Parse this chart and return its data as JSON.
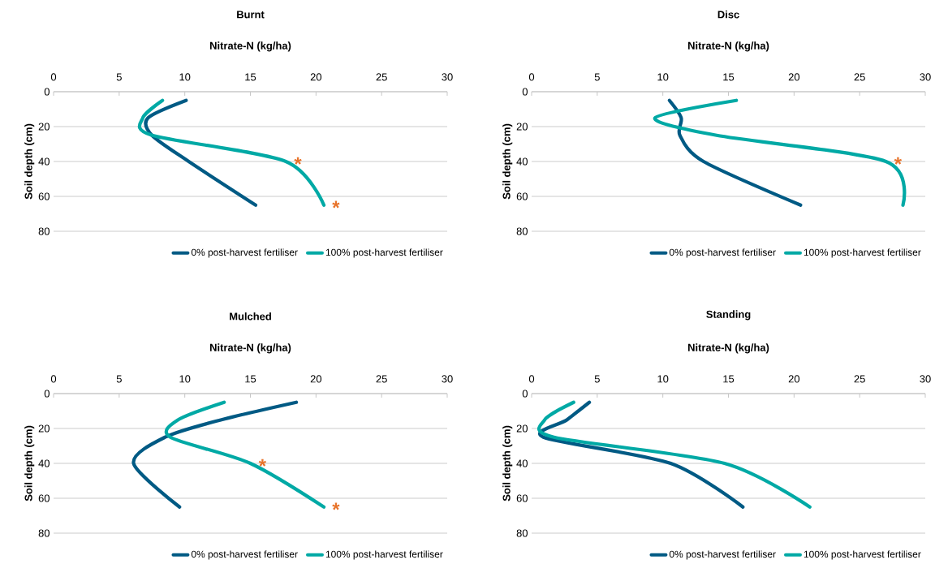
{
  "chart_data": [
    {
      "type": "line",
      "title": "Burnt",
      "xlabel": "Nitrate-N (kg/ha)",
      "ylabel": "Soil depth (cm)",
      "xlim": [
        0,
        30
      ],
      "xticks": [
        0,
        5,
        10,
        15,
        20,
        25,
        30
      ],
      "ylim": [
        80,
        0
      ],
      "yticks": [
        0,
        20,
        40,
        60,
        80
      ],
      "grid": "y",
      "legend": "bottom",
      "series": [
        {
          "name": "0% post-harvest fertiliser",
          "color": "#005a84",
          "x": [
            10.1,
            7.2,
            7.5,
            10.3,
            15.4
          ],
          "values": [
            5,
            15,
            25,
            40,
            65
          ]
        },
        {
          "name": "100% post-harvest fertiliser",
          "color": "#00a9a5",
          "x": [
            8.3,
            6.8,
            7.5,
            17.7,
            20.6
          ],
          "values": [
            5,
            15,
            25,
            40,
            65
          ]
        }
      ],
      "annotations": [
        {
          "text": "*",
          "x": 17.7,
          "y": 40
        },
        {
          "text": "*",
          "x": 20.6,
          "y": 65
        }
      ]
    },
    {
      "type": "line",
      "title": "Disc",
      "xlabel": "Nitrate-N (kg/ha)",
      "ylabel": "Soil depth (cm)",
      "xlim": [
        0,
        30
      ],
      "xticks": [
        0,
        5,
        10,
        15,
        20,
        25,
        30
      ],
      "ylim": [
        80,
        0
      ],
      "yticks": [
        0,
        20,
        40,
        60,
        80
      ],
      "grid": "y",
      "legend": "bottom",
      "series": [
        {
          "name": "0% post-harvest fertiliser",
          "color": "#005a84",
          "x": [
            10.5,
            11.4,
            11.3,
            13.1,
            20.5
          ],
          "values": [
            5,
            15,
            25,
            40,
            65
          ]
        },
        {
          "name": "100% post-harvest fertiliser",
          "color": "#00a9a5",
          "x": [
            15.6,
            9.4,
            14.1,
            27.0,
            28.3
          ],
          "values": [
            5,
            15,
            25,
            40,
            65
          ]
        }
      ],
      "annotations": [
        {
          "text": "*",
          "x": 27.0,
          "y": 40
        }
      ]
    },
    {
      "type": "line",
      "title": "Mulched",
      "xlabel": "Nitrate-N (kg/ha)",
      "ylabel": "Soil depth (cm)",
      "xlim": [
        0,
        30
      ],
      "xticks": [
        0,
        5,
        10,
        15,
        20,
        25,
        30
      ],
      "ylim": [
        80,
        0
      ],
      "yticks": [
        0,
        20,
        40,
        60,
        80
      ],
      "grid": "y",
      "legend": "bottom",
      "series": [
        {
          "name": "0% post-harvest fertiliser",
          "color": "#005a84",
          "x": [
            18.5,
            12.8,
            8.5,
            6.1,
            9.6
          ],
          "values": [
            5,
            15,
            25,
            40,
            65
          ]
        },
        {
          "name": "100% post-harvest fertiliser",
          "color": "#00a9a5",
          "x": [
            13.0,
            9.5,
            8.9,
            15.0,
            20.6
          ],
          "values": [
            5,
            15,
            25,
            40,
            65
          ]
        }
      ],
      "annotations": [
        {
          "text": "*",
          "x": 15.0,
          "y": 40
        },
        {
          "text": "*",
          "x": 20.6,
          "y": 65
        }
      ]
    },
    {
      "type": "line",
      "title": "Standing",
      "xlabel": "Nitrate-N (kg/ha)",
      "ylabel": "Soil depth (cm)",
      "xlim": [
        0,
        30
      ],
      "xticks": [
        0,
        5,
        10,
        15,
        20,
        25,
        30
      ],
      "ylim": [
        80,
        0
      ],
      "yticks": [
        0,
        20,
        40,
        60,
        80
      ],
      "grid": "y",
      "legend": "bottom",
      "series": [
        {
          "name": "0% post-harvest fertiliser",
          "color": "#005a84",
          "x": [
            4.4,
            2.7,
            0.9,
            10.6,
            16.1
          ],
          "values": [
            5,
            15,
            25,
            40,
            65
          ]
        },
        {
          "name": "100% post-harvest fertiliser",
          "color": "#00a9a5",
          "x": [
            3.2,
            1.0,
            1.7,
            14.7,
            21.2
          ],
          "values": [
            5,
            15,
            25,
            40,
            65
          ]
        }
      ]
    }
  ]
}
